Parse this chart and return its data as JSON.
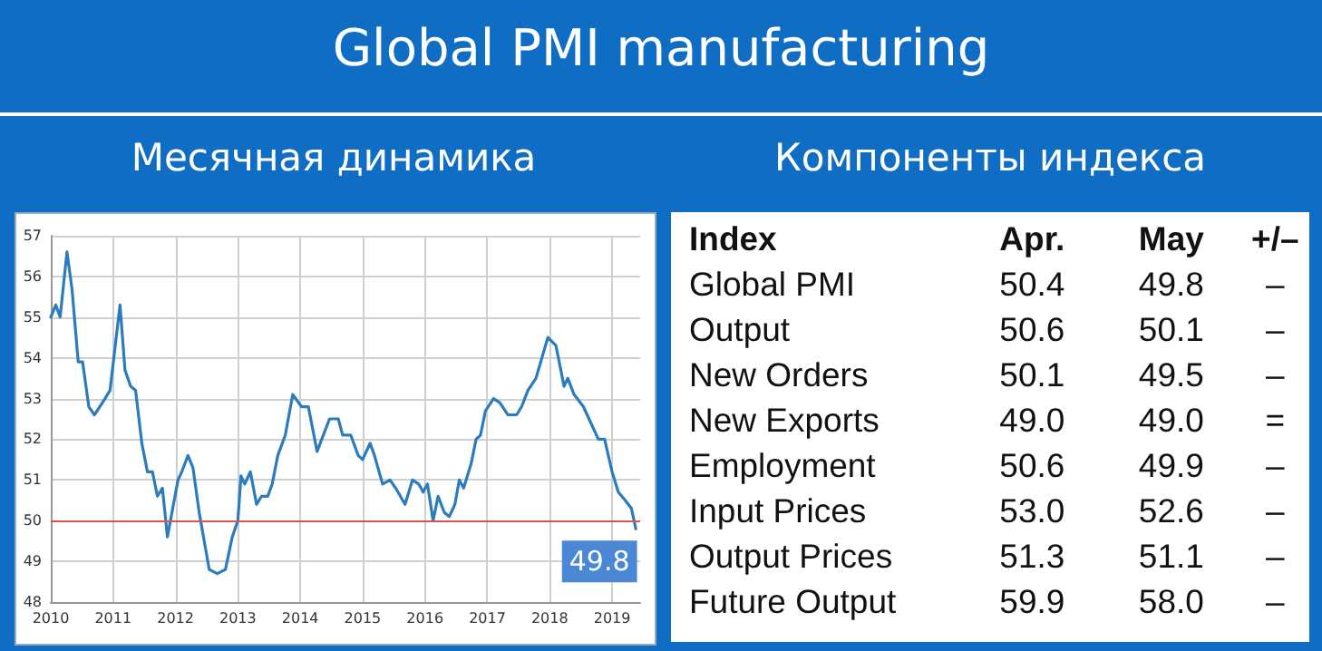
{
  "chart_data": [
    {
      "type": "line",
      "title": "Global PMI manufacturing",
      "subtitle": "Месячная динамика",
      "color": "#2b7bbd",
      "x": [
        2010.0,
        2010.08,
        2010.15,
        2010.26,
        2010.34,
        2010.44,
        2010.51,
        2010.61,
        2010.7,
        2010.87,
        2010.95,
        2011.11,
        2011.19,
        2011.28,
        2011.36,
        2011.46,
        2011.55,
        2011.63,
        2011.71,
        2011.79,
        2011.87,
        2012.04,
        2012.1,
        2012.2,
        2012.28,
        2012.38,
        2012.54,
        2012.67,
        2012.8,
        2012.91,
        2013.0,
        2013.05,
        2013.11,
        2013.2,
        2013.3,
        2013.38,
        2013.48,
        2013.55,
        2013.64,
        2013.76,
        2013.88,
        2014.02,
        2014.13,
        2014.27,
        2014.47,
        2014.61,
        2014.68,
        2014.81,
        2014.93,
        2015.0,
        2015.12,
        2015.19,
        2015.32,
        2015.44,
        2015.53,
        2015.68,
        2015.8,
        2015.9,
        2015.97,
        2016.04,
        2016.13,
        2016.21,
        2016.31,
        2016.39,
        2016.48,
        2016.55,
        2016.62,
        2016.74,
        2016.82,
        2016.89,
        2016.97,
        2017.1,
        2017.2,
        2017.33,
        2017.47,
        2017.55,
        2017.65,
        2017.78,
        2017.97,
        2018.1,
        2018.23,
        2018.29,
        2018.39,
        2018.54,
        2018.63,
        2018.78,
        2018.88,
        2019.0,
        2019.1,
        2019.21,
        2019.31,
        2019.38
      ],
      "values": [
        55.0,
        55.3,
        55.0,
        56.6,
        55.7,
        53.9,
        53.9,
        52.8,
        52.6,
        53.0,
        53.2,
        55.3,
        53.7,
        53.3,
        53.2,
        51.9,
        51.2,
        51.2,
        50.6,
        50.8,
        49.6,
        51.0,
        51.2,
        51.6,
        51.3,
        50.2,
        48.8,
        48.7,
        48.8,
        49.6,
        50.0,
        51.1,
        50.9,
        51.2,
        50.4,
        50.6,
        50.6,
        50.9,
        51.6,
        52.1,
        53.1,
        52.8,
        52.8,
        51.7,
        52.5,
        52.5,
        52.1,
        52.1,
        51.6,
        51.5,
        51.9,
        51.6,
        50.9,
        51.0,
        50.8,
        50.4,
        51.0,
        50.9,
        50.7,
        50.9,
        50.0,
        50.6,
        50.2,
        50.1,
        50.4,
        51.0,
        50.8,
        51.4,
        52.0,
        52.1,
        52.7,
        53.0,
        52.9,
        52.6,
        52.6,
        52.8,
        53.2,
        53.5,
        54.5,
        54.3,
        53.3,
        53.5,
        53.1,
        52.8,
        52.5,
        52.0,
        52.0,
        51.2,
        50.7,
        50.5,
        50.3,
        49.8
      ],
      "xlim": [
        2010,
        2019.45
      ],
      "xticks": [
        2010,
        2011,
        2012,
        2013,
        2014,
        2015,
        2016,
        2017,
        2018,
        2019
      ],
      "ylim": [
        48,
        57
      ],
      "yticks": [
        48,
        49,
        50,
        51,
        52,
        53,
        54,
        55,
        56,
        57
      ],
      "grid": true,
      "marker": "none",
      "line_style": "solid",
      "ref_lines": [
        {
          "axis": "y",
          "value": 50,
          "color": "#d9534f"
        }
      ],
      "annotations": [
        {
          "text": "49.8",
          "x": 2019.38,
          "y": 49.8
        }
      ]
    },
    {
      "type": "other",
      "title": "Компоненты индекса",
      "annotations": [
        "Index"
      ],
      "data_labels": true,
      "categories": [
        "Global PMI",
        "Output",
        "New Orders",
        "New Exports",
        "Employment",
        "Input Prices",
        "Output Prices",
        "Future Output"
      ],
      "series": [
        {
          "name": "Apr.",
          "values": [
            50.4,
            50.6,
            50.1,
            49.0,
            50.6,
            53.0,
            51.3,
            59.9
          ],
          "value_labels": [
            "50.4",
            "50.6",
            "50.1",
            "49.0",
            "50.6",
            "53.0",
            "51.3",
            "59.9"
          ]
        },
        {
          "name": "May",
          "values": [
            49.8,
            50.1,
            49.5,
            49.0,
            49.9,
            52.6,
            51.1,
            58.0
          ],
          "value_labels": [
            "49.8",
            "50.1",
            "49.5",
            "49.0",
            "49.9",
            "52.6",
            "51.1",
            "58.0"
          ]
        },
        {
          "name": "+/–",
          "values": [
            null,
            null,
            null,
            null,
            null,
            null,
            null,
            null
          ],
          "value_labels": [
            "–",
            "–",
            "–",
            "=",
            "–",
            "–",
            "–",
            "–"
          ]
        }
      ]
    }
  ]
}
